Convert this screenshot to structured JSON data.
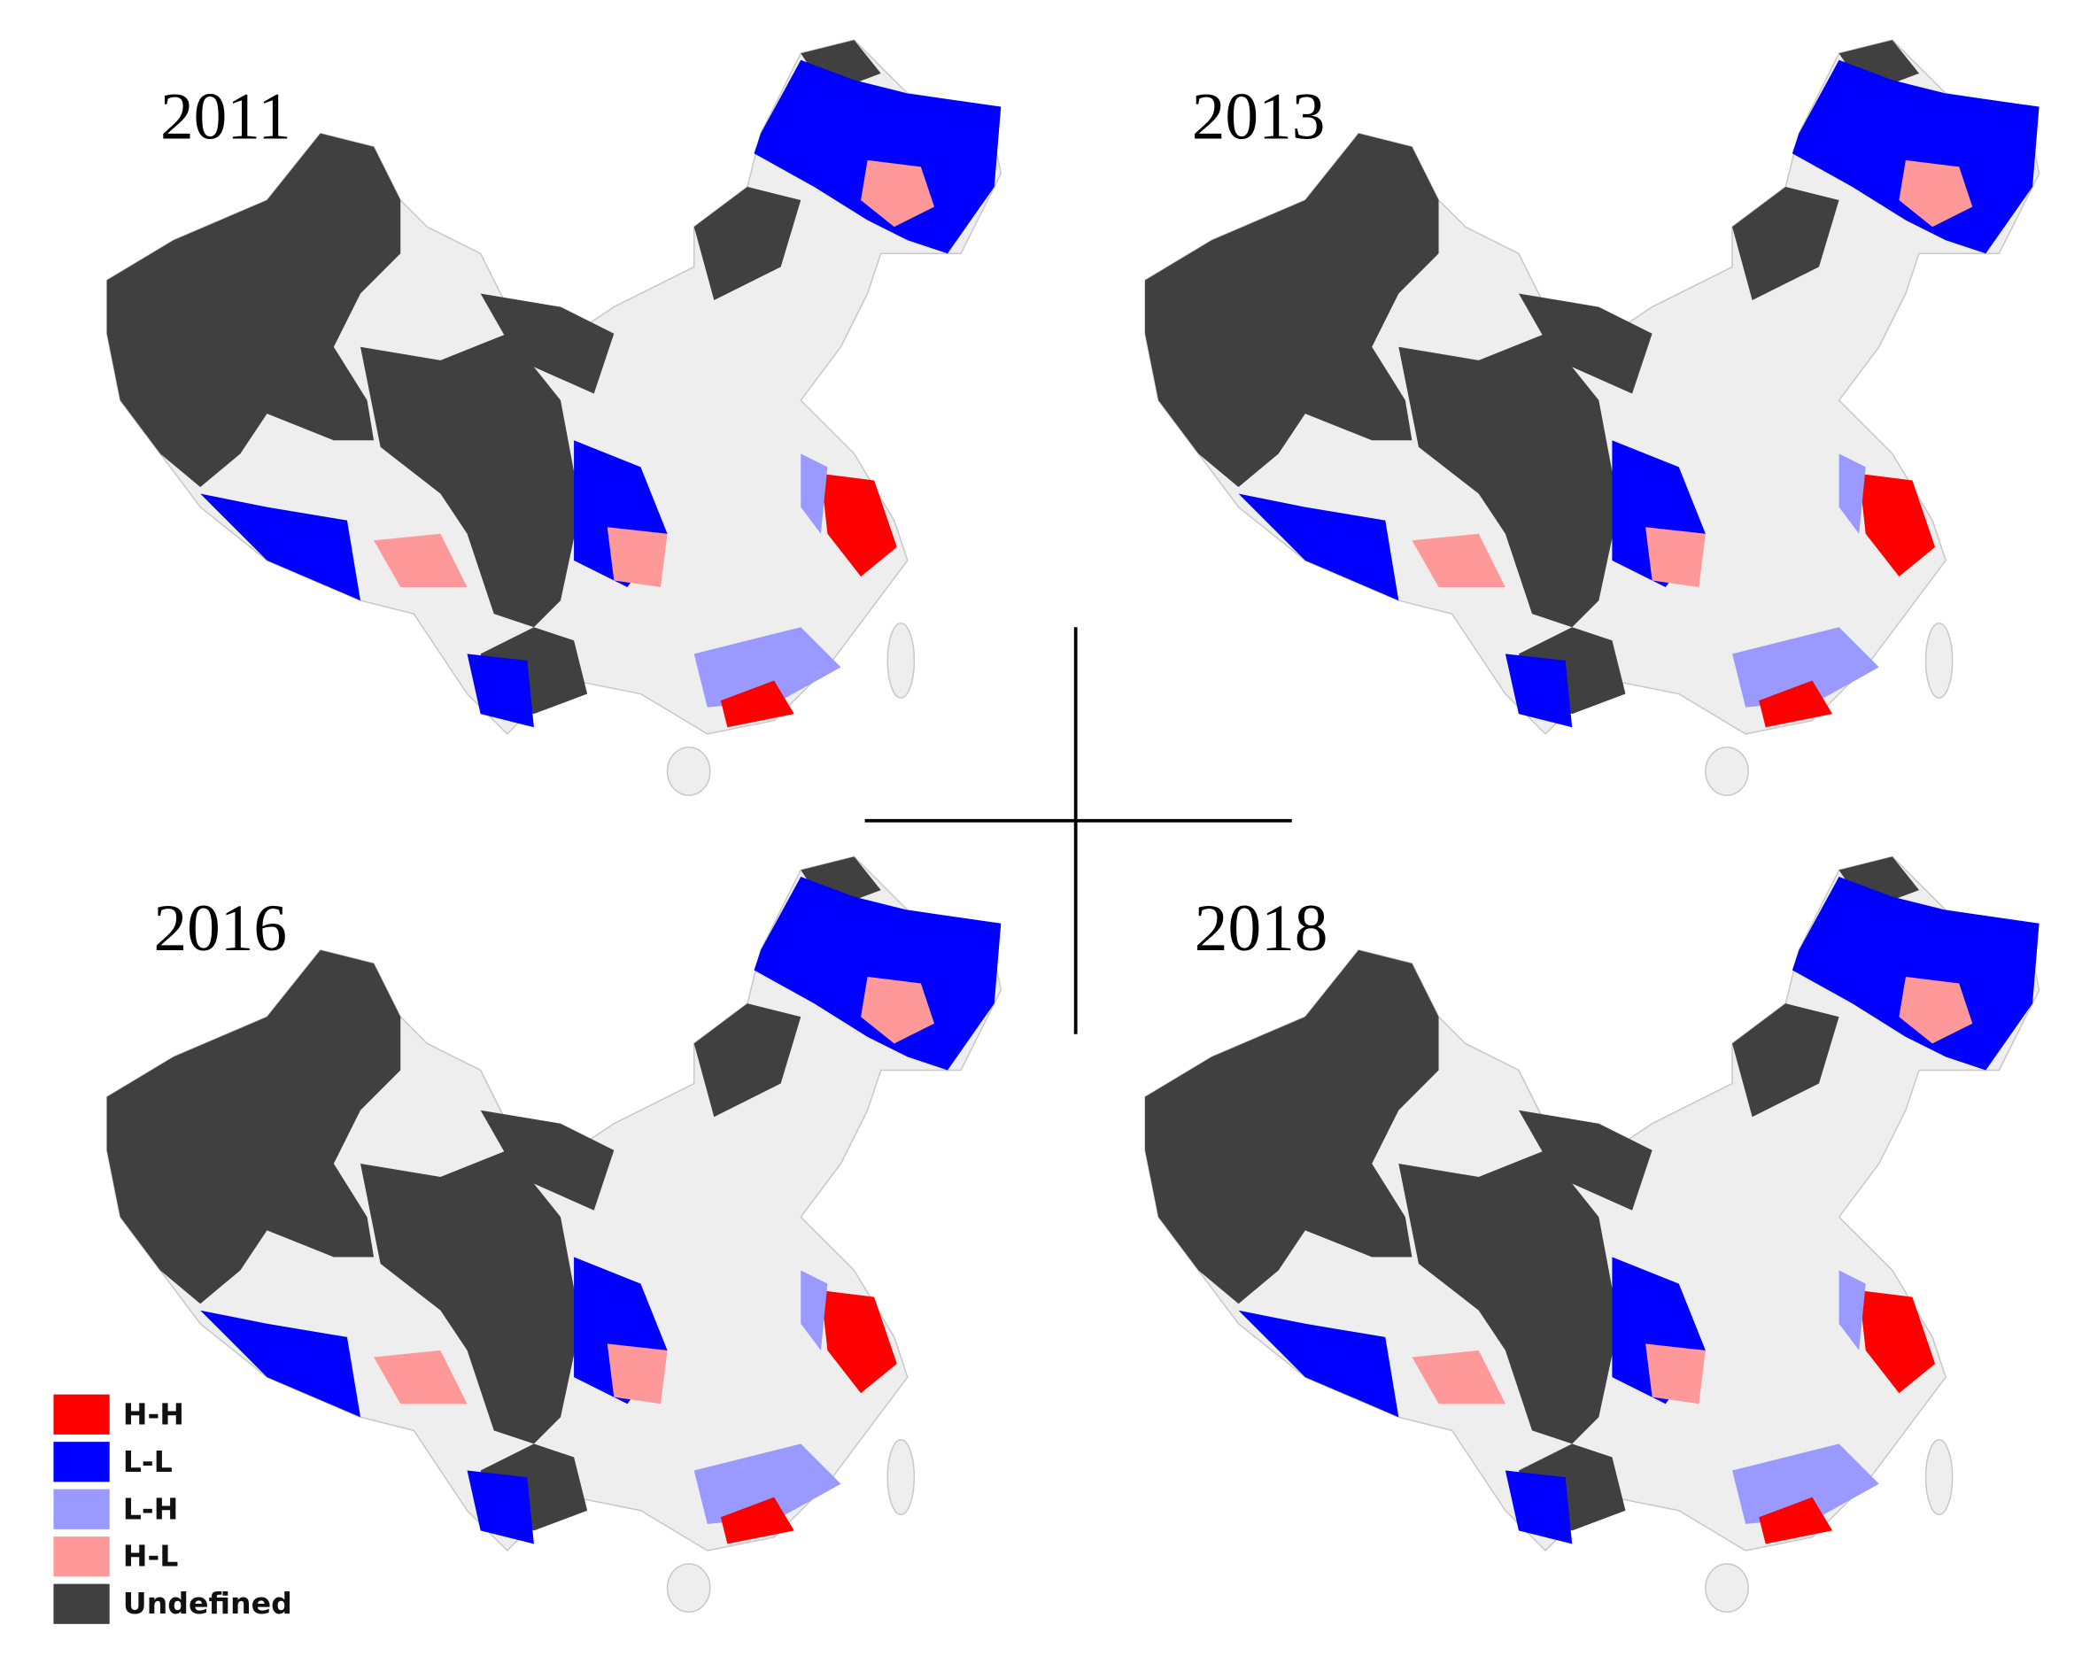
{
  "panels": [
    {
      "year": "2011"
    },
    {
      "year": "2013"
    },
    {
      "year": "2016"
    },
    {
      "year": "2018"
    }
  ],
  "legend": [
    {
      "label": "H-H",
      "color": "#ff0000"
    },
    {
      "label": "L-L",
      "color": "#0000ff"
    },
    {
      "label": "L-H",
      "color": "#9999ff"
    },
    {
      "label": "H-L",
      "color": "#ff9999"
    },
    {
      "label": "Undefined",
      "color": "#404040"
    }
  ]
}
